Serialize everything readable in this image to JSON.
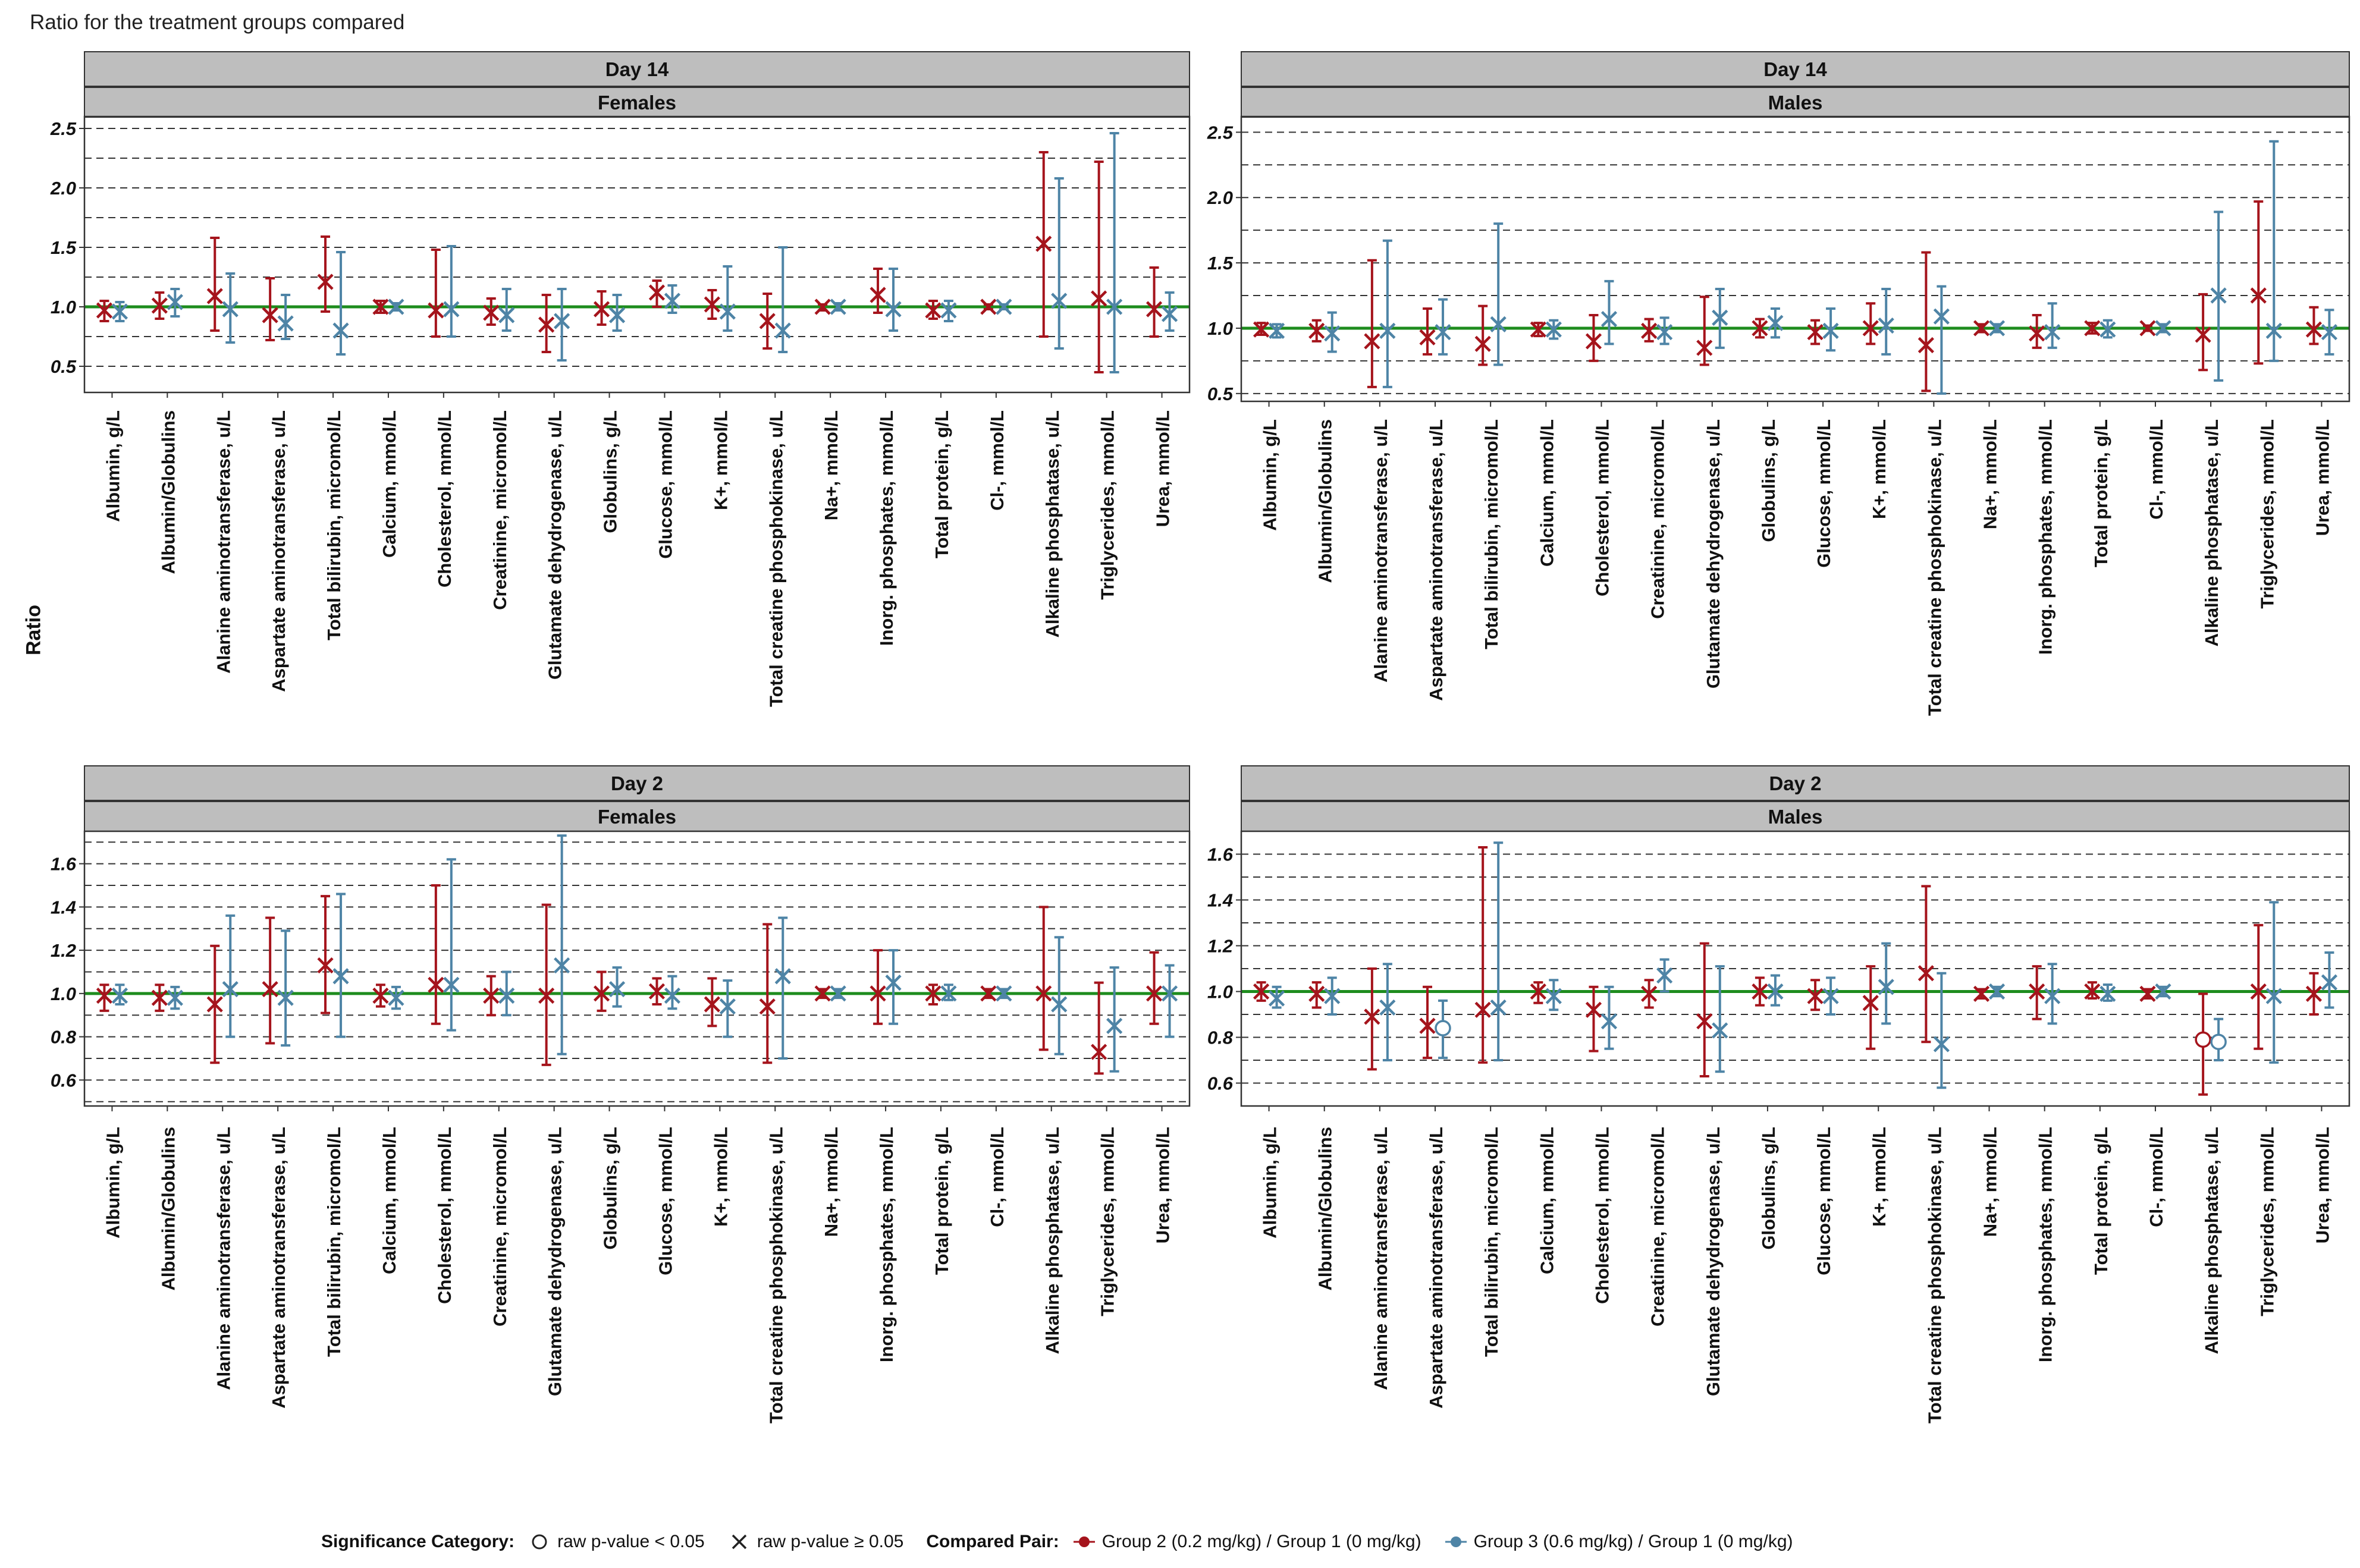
{
  "title": "Ratio for the treatment groups compared",
  "y_axis_label": "Ratio",
  "colors": {
    "group2": "#A5141C",
    "group3": "#4E84A6",
    "reference": "#1E8C1E",
    "strip": "#BEBEBE"
  },
  "categories": [
    "Albumin, g/L",
    "Albumin/Globulins",
    "Alanine aminotransferase, u/L",
    "Aspartate aminotransferase, u/L",
    "Total bilirubin, micromol/L",
    "Calcium, mmol/L",
    "Cholesterol, mmol/L",
    "Creatinine, micromol/L",
    "Glutamate dehydrogenase, u/L",
    "Globulins, g/L",
    "Glucose, mmol/L",
    "K+, mmol/L",
    "Total creatine phosphokinase, u/L",
    "Na+, mmol/L",
    "Inorg. phosphates, mmol/L",
    "Total protein, g/L",
    "Cl-, mmol/L",
    "Alkaline phosphatase, u/L",
    "Triglycerides, mmol/L",
    "Urea, mmol/L"
  ],
  "legend": {
    "significance_title": "Significance Category:",
    "sig_items": [
      {
        "symbol": "circle",
        "label": "raw p-value < 0.05"
      },
      {
        "symbol": "cross",
        "label": "raw p-value ≥ 0.05"
      }
    ],
    "pair_title": "Compared Pair:",
    "pair_items": [
      {
        "series": "group2",
        "label": "Group 2 (0.2 mg/kg) / Group 1 (0 mg/kg)"
      },
      {
        "series": "group3",
        "label": "Group 3 (0.6 mg/kg) / Group 1 (0 mg/kg)"
      }
    ]
  },
  "chart_data": [
    {
      "type": "errorbar",
      "day": "Day 14",
      "sex": "Females",
      "ylim": [
        0.28,
        2.6
      ],
      "yticks": [
        0.5,
        1.0,
        1.5,
        2.0,
        2.5
      ],
      "ytick_labels": [
        "0.5",
        "1.0",
        "1.5",
        "2.0",
        "2.5"
      ],
      "dashed_lines": [
        0.5,
        0.75,
        1.25,
        1.5,
        1.75,
        2.0,
        2.25,
        2.5
      ],
      "reference_line": 1.0,
      "series": [
        {
          "name": "Group 2 (0.2 mg/kg) / Group 1 (0 mg/kg)",
          "color_key": "group2",
          "est": [
            0.97,
            1.01,
            1.09,
            0.93,
            1.21,
            1.0,
            0.97,
            0.95,
            0.85,
            0.98,
            1.12,
            1.02,
            0.88,
            1.0,
            1.1,
            0.97,
            1.0,
            1.53,
            1.07,
            0.98
          ],
          "lo": [
            0.88,
            0.9,
            0.8,
            0.72,
            0.96,
            0.95,
            0.75,
            0.85,
            0.62,
            0.85,
            1.0,
            0.9,
            0.65,
            0.97,
            0.95,
            0.9,
            0.98,
            0.75,
            0.45,
            0.75
          ],
          "hi": [
            1.05,
            1.12,
            1.58,
            1.24,
            1.59,
            1.05,
            1.48,
            1.07,
            1.1,
            1.13,
            1.22,
            1.14,
            1.11,
            1.02,
            1.32,
            1.05,
            1.02,
            2.3,
            2.22,
            1.33
          ],
          "sig": [
            "x",
            "x",
            "x",
            "x",
            "x",
            "x",
            "x",
            "x",
            "x",
            "x",
            "x",
            "x",
            "x",
            "x",
            "x",
            "x",
            "x",
            "x",
            "x",
            "x"
          ]
        },
        {
          "name": "Group 3 (0.6 mg/kg) / Group 1 (0 mg/kg)",
          "color_key": "group3",
          "est": [
            0.96,
            1.04,
            0.98,
            0.86,
            0.8,
            1.0,
            0.98,
            0.93,
            0.88,
            0.93,
            1.05,
            0.96,
            0.8,
            1.0,
            0.98,
            0.97,
            1.0,
            1.05,
            1.0,
            0.94
          ],
          "lo": [
            0.88,
            0.92,
            0.7,
            0.73,
            0.6,
            0.97,
            0.75,
            0.8,
            0.55,
            0.8,
            0.95,
            0.8,
            0.62,
            0.97,
            0.8,
            0.88,
            0.98,
            0.65,
            0.45,
            0.8
          ],
          "hi": [
            1.04,
            1.15,
            1.28,
            1.1,
            1.46,
            1.03,
            1.51,
            1.15,
            1.15,
            1.1,
            1.18,
            1.34,
            1.5,
            1.03,
            1.32,
            1.05,
            1.02,
            2.08,
            2.46,
            1.12
          ],
          "sig": [
            "x",
            "x",
            "x",
            "x",
            "x",
            "x",
            "x",
            "x",
            "x",
            "x",
            "x",
            "x",
            "x",
            "x",
            "x",
            "x",
            "x",
            "x",
            "x",
            "x"
          ]
        }
      ]
    },
    {
      "type": "errorbar",
      "day": "Day 14",
      "sex": "Males",
      "ylim": [
        0.44,
        2.62
      ],
      "yticks": [
        0.5,
        1.0,
        1.5,
        2.0,
        2.5
      ],
      "ytick_labels": [
        "0.5",
        "1.0",
        "1.5",
        "2.0",
        "2.5"
      ],
      "dashed_lines": [
        0.5,
        0.75,
        1.25,
        1.5,
        1.75,
        2.0,
        2.25,
        2.5
      ],
      "reference_line": 1.0,
      "series": [
        {
          "name": "Group 2 (0.2 mg/kg) / Group 1 (0 mg/kg)",
          "color_key": "group2",
          "est": [
            0.99,
            0.98,
            0.9,
            0.93,
            0.88,
            0.99,
            0.9,
            0.98,
            0.85,
            1.0,
            0.97,
            1.0,
            0.87,
            1.0,
            0.96,
            1.0,
            1.0,
            0.95,
            1.25,
            0.99
          ],
          "lo": [
            0.95,
            0.9,
            0.55,
            0.8,
            0.72,
            0.94,
            0.75,
            0.9,
            0.72,
            0.93,
            0.88,
            0.88,
            0.52,
            0.97,
            0.85,
            0.96,
            0.98,
            0.68,
            0.73,
            0.88
          ],
          "hi": [
            1.04,
            1.06,
            1.52,
            1.15,
            1.17,
            1.04,
            1.1,
            1.07,
            1.24,
            1.07,
            1.06,
            1.19,
            1.58,
            1.03,
            1.1,
            1.04,
            1.02,
            1.26,
            1.97,
            1.16
          ],
          "sig": [
            "x",
            "x",
            "x",
            "x",
            "x",
            "x",
            "x",
            "x",
            "x",
            "x",
            "x",
            "x",
            "x",
            "x",
            "x",
            "x",
            "x",
            "x",
            "x",
            "x"
          ]
        },
        {
          "name": "Group 3 (0.6 mg/kg) / Group 1 (0 mg/kg)",
          "color_key": "group3",
          "est": [
            0.98,
            0.96,
            0.98,
            0.97,
            1.03,
            0.99,
            1.07,
            0.97,
            1.08,
            1.04,
            0.98,
            1.02,
            1.09,
            1.0,
            0.97,
            0.99,
            1.0,
            1.25,
            0.98,
            0.97
          ],
          "lo": [
            0.93,
            0.82,
            0.55,
            0.8,
            0.72,
            0.92,
            0.88,
            0.88,
            0.85,
            0.93,
            0.83,
            0.8,
            0.5,
            0.97,
            0.85,
            0.93,
            0.97,
            0.6,
            0.75,
            0.8
          ],
          "hi": [
            1.03,
            1.12,
            1.67,
            1.22,
            1.8,
            1.06,
            1.36,
            1.08,
            1.3,
            1.15,
            1.15,
            1.3,
            1.32,
            1.03,
            1.19,
            1.06,
            1.03,
            1.89,
            2.43,
            1.14
          ],
          "sig": [
            "x",
            "x",
            "x",
            "x",
            "x",
            "x",
            "x",
            "x",
            "x",
            "x",
            "x",
            "x",
            "x",
            "x",
            "x",
            "x",
            "x",
            "x",
            "x",
            "x"
          ]
        }
      ]
    },
    {
      "type": "errorbar",
      "day": "Day 2",
      "sex": "Females",
      "ylim": [
        0.48,
        1.75
      ],
      "yticks": [
        0.6,
        0.8,
        1.0,
        1.2,
        1.4,
        1.6
      ],
      "ytick_labels": [
        "0.6",
        "0.8",
        "1.0",
        "1.2",
        "1.4",
        "1.6"
      ],
      "dashed_lines": [
        0.5,
        0.6,
        0.7,
        0.8,
        0.9,
        1.1,
        1.2,
        1.3,
        1.4,
        1.5,
        1.6,
        1.7
      ],
      "reference_line": 1.0,
      "series": [
        {
          "name": "Group 2 (0.2 mg/kg) / Group 1 (0 mg/kg)",
          "color_key": "group2",
          "est": [
            0.99,
            0.98,
            0.95,
            1.02,
            1.13,
            0.99,
            1.04,
            0.99,
            0.99,
            1.0,
            1.01,
            0.95,
            0.94,
            1.0,
            1.0,
            1.0,
            1.0,
            1.0,
            0.73,
            1.0
          ],
          "lo": [
            0.92,
            0.92,
            0.68,
            0.77,
            0.91,
            0.94,
            0.86,
            0.9,
            0.67,
            0.92,
            0.95,
            0.85,
            0.68,
            0.98,
            0.86,
            0.95,
            0.98,
            0.74,
            0.63,
            0.86
          ],
          "hi": [
            1.04,
            1.04,
            1.22,
            1.35,
            1.45,
            1.04,
            1.5,
            1.08,
            1.41,
            1.1,
            1.07,
            1.07,
            1.32,
            1.02,
            1.2,
            1.04,
            1.02,
            1.4,
            1.05,
            1.19
          ],
          "sig": [
            "x",
            "x",
            "x",
            "x",
            "x",
            "x",
            "x",
            "x",
            "x",
            "x",
            "x",
            "x",
            "x",
            "x",
            "x",
            "x",
            "x",
            "x",
            "x",
            "x"
          ]
        },
        {
          "name": "Group 3 (0.6 mg/kg) / Group 1 (0 mg/kg)",
          "color_key": "group3",
          "est": [
            0.99,
            0.98,
            1.02,
            0.98,
            1.08,
            0.98,
            1.04,
            0.99,
            1.13,
            1.02,
            0.99,
            0.94,
            1.08,
            1.0,
            1.05,
            1.0,
            1.0,
            0.95,
            0.85,
            1.0
          ],
          "lo": [
            0.95,
            0.93,
            0.8,
            0.76,
            0.8,
            0.93,
            0.83,
            0.9,
            0.72,
            0.94,
            0.93,
            0.8,
            0.7,
            0.98,
            0.86,
            0.97,
            0.98,
            0.72,
            0.64,
            0.8
          ],
          "hi": [
            1.04,
            1.03,
            1.36,
            1.29,
            1.46,
            1.03,
            1.62,
            1.1,
            1.73,
            1.12,
            1.08,
            1.06,
            1.35,
            1.02,
            1.2,
            1.04,
            1.02,
            1.26,
            1.12,
            1.13
          ],
          "sig": [
            "x",
            "x",
            "x",
            "x",
            "x",
            "x",
            "x",
            "x",
            "x",
            "x",
            "x",
            "x",
            "x",
            "x",
            "x",
            "x",
            "x",
            "x",
            "x",
            "x"
          ]
        }
      ]
    },
    {
      "type": "errorbar",
      "day": "Day 2",
      "sex": "Males",
      "ylim": [
        0.5,
        1.7
      ],
      "yticks": [
        0.6,
        0.8,
        1.0,
        1.2,
        1.4,
        1.6
      ],
      "ytick_labels": [
        "0.6",
        "0.8",
        "1.0",
        "1.2",
        "1.4",
        "1.6"
      ],
      "dashed_lines": [
        0.5,
        0.6,
        0.7,
        0.8,
        0.9,
        1.1,
        1.2,
        1.3,
        1.4,
        1.5,
        1.6,
        1.7
      ],
      "reference_line": 1.0,
      "series": [
        {
          "name": "Group 2 (0.2 mg/kg) / Group 1 (0 mg/kg)",
          "color_key": "group2",
          "est": [
            1.0,
            0.99,
            0.89,
            0.85,
            0.92,
            1.0,
            0.92,
            0.99,
            0.87,
            1.0,
            0.98,
            0.95,
            1.08,
            0.99,
            1.0,
            1.0,
            0.99,
            0.79,
            1.0,
            0.99
          ],
          "lo": [
            0.96,
            0.93,
            0.66,
            0.71,
            0.69,
            0.95,
            0.74,
            0.93,
            0.63,
            0.94,
            0.92,
            0.75,
            0.78,
            0.97,
            0.88,
            0.97,
            0.97,
            0.55,
            0.75,
            0.9
          ],
          "hi": [
            1.04,
            1.04,
            1.1,
            1.02,
            1.63,
            1.04,
            1.02,
            1.05,
            1.21,
            1.06,
            1.05,
            1.11,
            1.46,
            1.01,
            1.11,
            1.04,
            1.01,
            0.99,
            1.29,
            1.08
          ],
          "sig": [
            "x",
            "x",
            "x",
            "x",
            "x",
            "x",
            "x",
            "x",
            "x",
            "x",
            "x",
            "x",
            "x",
            "x",
            "x",
            "x",
            "x",
            "o",
            "x",
            "x"
          ]
        },
        {
          "name": "Group 3 (0.6 mg/kg) / Group 1 (0 mg/kg)",
          "color_key": "group3",
          "est": [
            0.97,
            0.98,
            0.93,
            0.84,
            0.93,
            0.98,
            0.87,
            1.07,
            0.83,
            1.0,
            0.98,
            1.02,
            0.77,
            1.0,
            0.98,
            0.99,
            1.0,
            0.78,
            0.98,
            1.04
          ],
          "lo": [
            0.93,
            0.9,
            0.7,
            0.71,
            0.7,
            0.92,
            0.75,
            1.0,
            0.65,
            0.94,
            0.9,
            0.86,
            0.58,
            0.98,
            0.86,
            0.96,
            0.98,
            0.7,
            0.69,
            0.93
          ],
          "hi": [
            1.02,
            1.06,
            1.12,
            0.96,
            1.65,
            1.05,
            1.02,
            1.14,
            1.11,
            1.07,
            1.06,
            1.21,
            1.08,
            1.02,
            1.12,
            1.03,
            1.02,
            0.88,
            1.39,
            1.17
          ],
          "sig": [
            "x",
            "x",
            "x",
            "o",
            "x",
            "x",
            "x",
            "x",
            "x",
            "x",
            "x",
            "x",
            "x",
            "x",
            "x",
            "x",
            "x",
            "o",
            "x",
            "x"
          ]
        }
      ]
    }
  ]
}
